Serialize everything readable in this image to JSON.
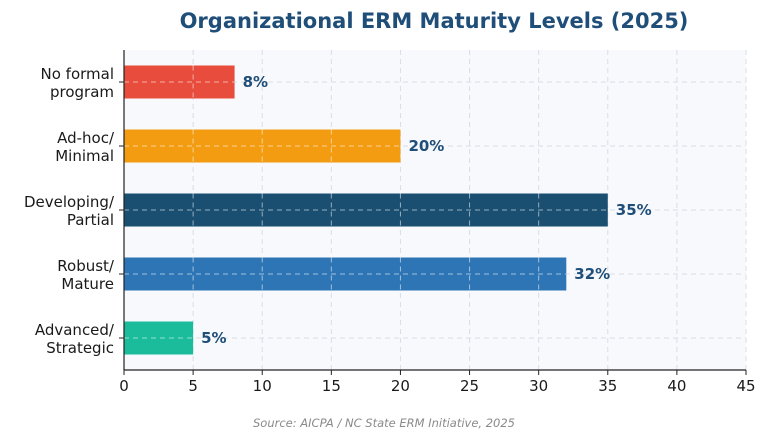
{
  "chart_data": {
    "type": "bar",
    "orientation": "horizontal",
    "title": "Organizational ERM Maturity Levels (2025)",
    "categories": [
      [
        "No formal",
        "program"
      ],
      [
        "Ad-hoc/",
        "Minimal"
      ],
      [
        "Developing/",
        "Partial"
      ],
      [
        "Robust/",
        "Mature"
      ],
      [
        "Advanced/",
        "Strategic"
      ]
    ],
    "values": [
      8,
      20,
      35,
      32,
      5
    ],
    "value_labels": [
      "8%",
      "20%",
      "35%",
      "32%",
      "5%"
    ],
    "colors": [
      "#e84c3d",
      "#f39c12",
      "#1a4f72",
      "#2e75b6",
      "#1abc9c"
    ],
    "xlim": [
      0,
      45
    ],
    "xticks": [
      0,
      5,
      10,
      15,
      20,
      25,
      30,
      35,
      40,
      45
    ],
    "xlabel": "",
    "ylabel": "",
    "grid": true,
    "source": "Source: AICPA / NC State ERM Initiative, 2025"
  }
}
